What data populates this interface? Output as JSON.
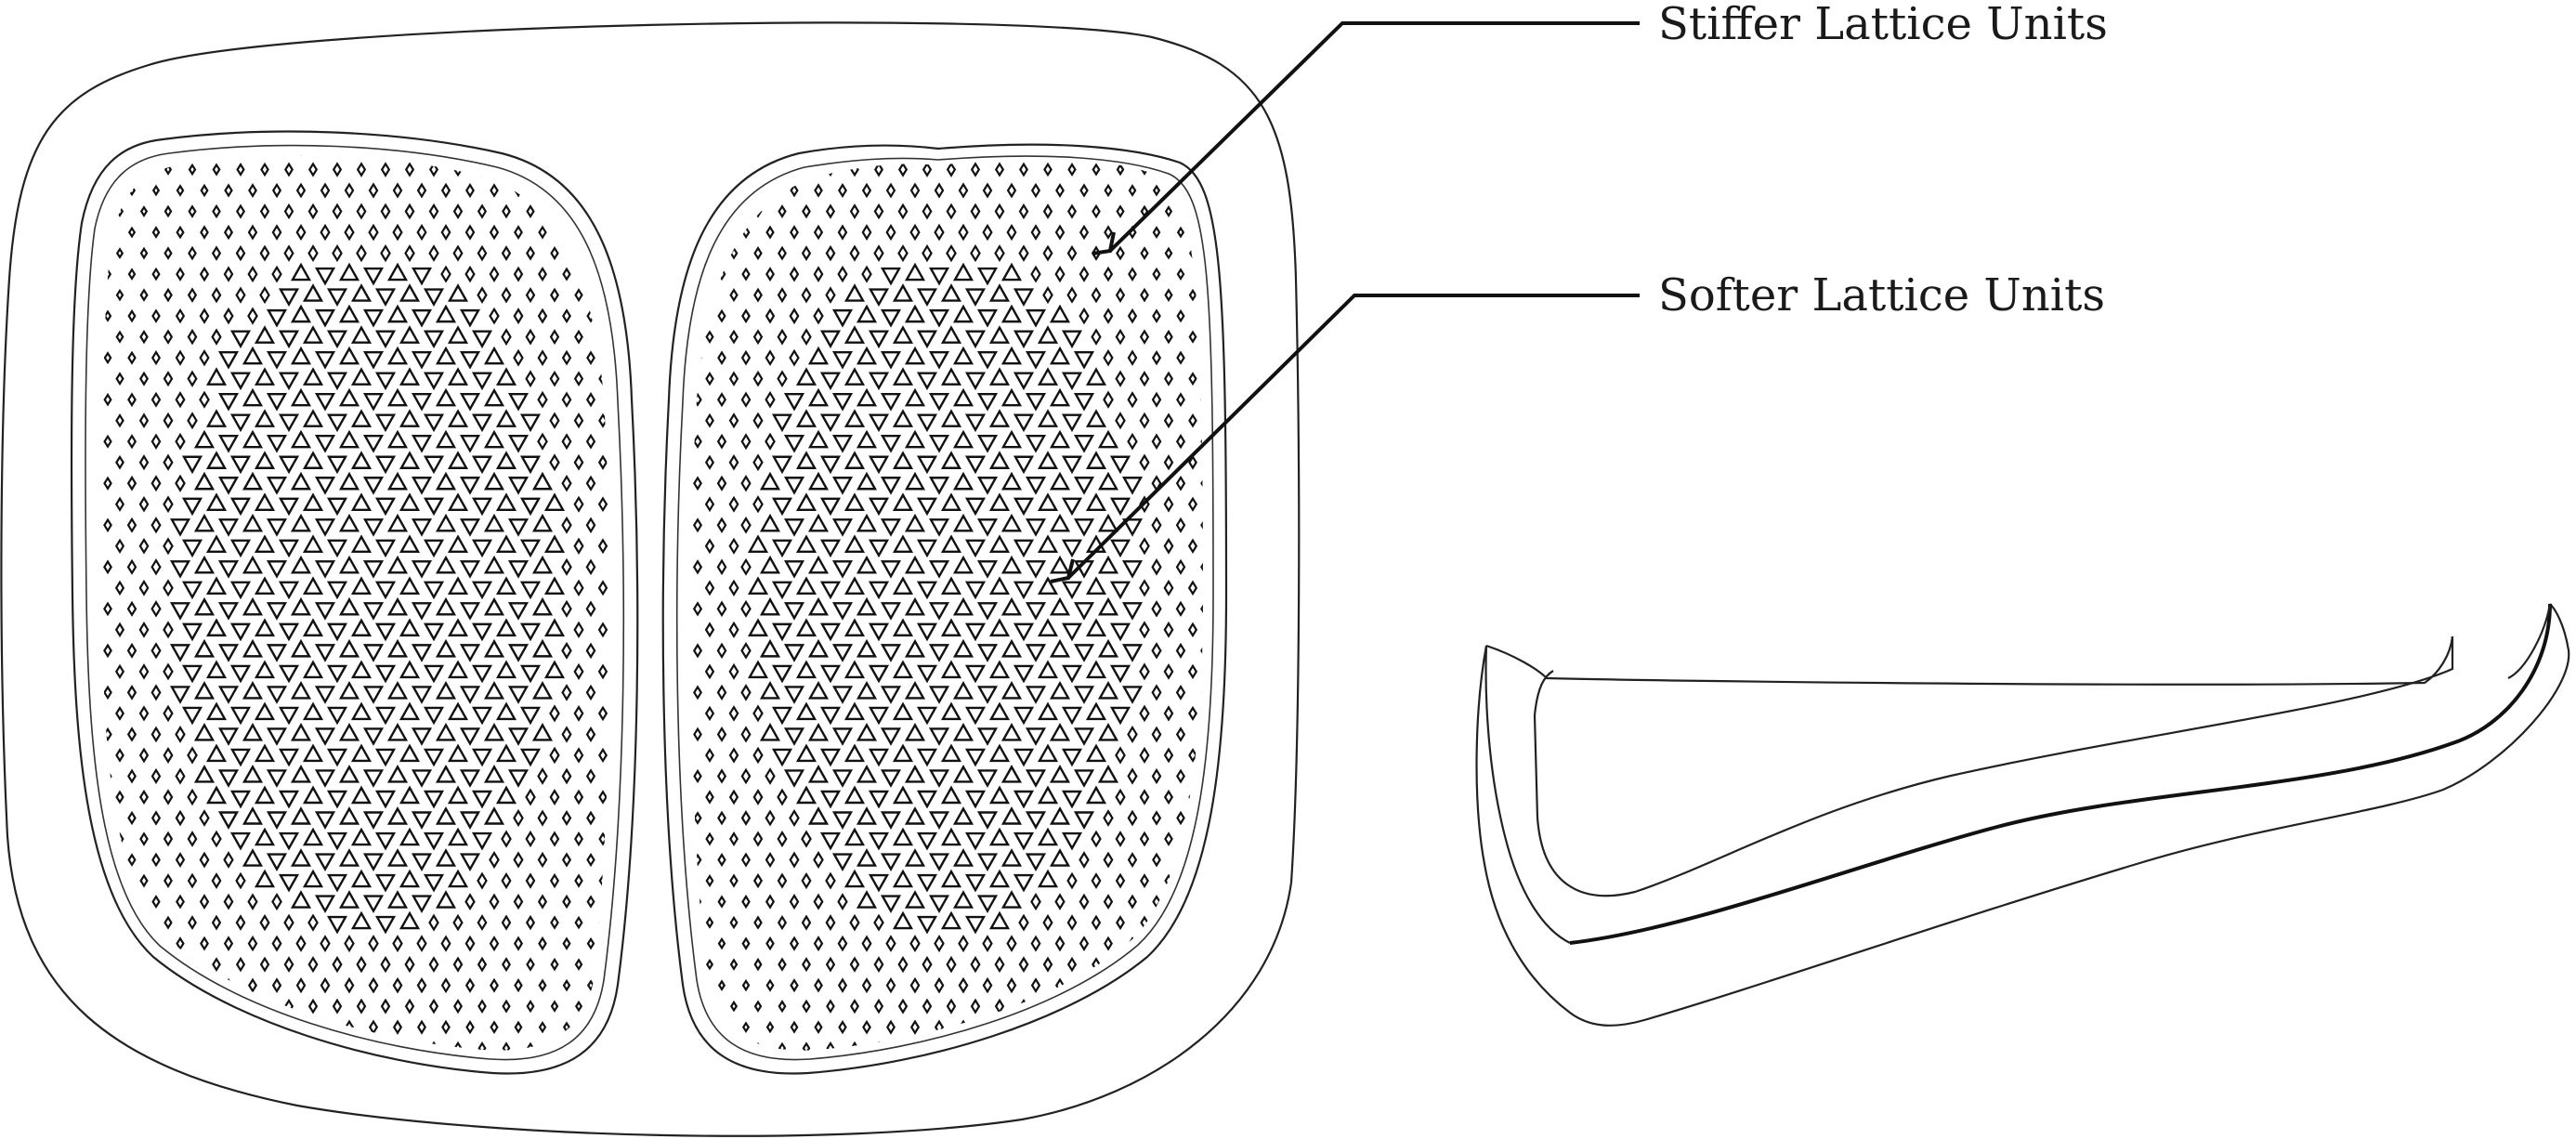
{
  "labels": {
    "stiffer": "Stiffer Lattice Units",
    "softer": "Softer Lattice Units"
  },
  "colors": {
    "ink": "#111111",
    "background": "#ffffff"
  }
}
